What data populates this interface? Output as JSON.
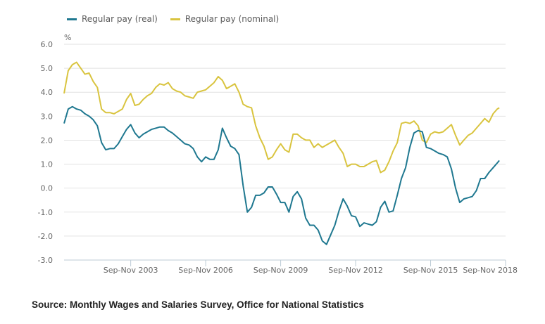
{
  "chart_data": {
    "type": "line",
    "title": "",
    "xlabel": "",
    "ylabel": "%",
    "ylim": [
      -3.0,
      6.0
    ],
    "yticks": [
      "6.0",
      "5.0",
      "4.0",
      "3.0",
      "2.0",
      "1.0",
      "0.0",
      "-1.0",
      "-2.0",
      "-3.0"
    ],
    "xlim": [
      "2001-03",
      "2018-11"
    ],
    "xtick_labels": [
      {
        "period": "2003-11",
        "label": "Sep-Nov 2003"
      },
      {
        "period": "2006-11",
        "label": "Sep-Nov 2006"
      },
      {
        "period": "2009-11",
        "label": "Sep-Nov 2009"
      },
      {
        "period": "2012-11",
        "label": "Sep-Nov 2012"
      },
      {
        "period": "2015-11",
        "label": "Sep-Nov 2015"
      },
      {
        "period": "2018-11",
        "label": "Sep-Nov 2018"
      }
    ],
    "grid": true,
    "legend_position": "top-left",
    "x": [
      "2001-03",
      "2001-05",
      "2001-07",
      "2001-09",
      "2001-11",
      "2002-01",
      "2002-03",
      "2002-05",
      "2002-07",
      "2002-09",
      "2002-11",
      "2003-01",
      "2003-03",
      "2003-05",
      "2003-07",
      "2003-09",
      "2003-11",
      "2004-01",
      "2004-03",
      "2004-05",
      "2004-07",
      "2004-09",
      "2004-11",
      "2005-01",
      "2005-03",
      "2005-05",
      "2005-07",
      "2005-09",
      "2005-11",
      "2006-01",
      "2006-03",
      "2006-05",
      "2006-07",
      "2006-09",
      "2006-11",
      "2007-01",
      "2007-03",
      "2007-05",
      "2007-07",
      "2007-09",
      "2007-11",
      "2008-01",
      "2008-03",
      "2008-05",
      "2008-07",
      "2008-09",
      "2008-11",
      "2009-01",
      "2009-03",
      "2009-05",
      "2009-07",
      "2009-09",
      "2009-11",
      "2010-01",
      "2010-03",
      "2010-05",
      "2010-07",
      "2010-09",
      "2010-11",
      "2011-01",
      "2011-03",
      "2011-05",
      "2011-07",
      "2011-09",
      "2011-11",
      "2012-01",
      "2012-03",
      "2012-05",
      "2012-07",
      "2012-09",
      "2012-11",
      "2013-01",
      "2013-03",
      "2013-05",
      "2013-07",
      "2013-09",
      "2013-11",
      "2014-01",
      "2014-03",
      "2014-05",
      "2014-07",
      "2014-09",
      "2014-11",
      "2015-01",
      "2015-03",
      "2015-05",
      "2015-07",
      "2015-09",
      "2015-11",
      "2016-01",
      "2016-03",
      "2016-05",
      "2016-07",
      "2016-09",
      "2016-11",
      "2017-01",
      "2017-03",
      "2017-05",
      "2017-07",
      "2017-09",
      "2017-11",
      "2018-01",
      "2018-03",
      "2018-05",
      "2018-07",
      "2018-08"
    ],
    "series": [
      {
        "name": "Regular pay (real)",
        "color": "#1f7890",
        "values": [
          2.7,
          3.3,
          3.4,
          3.3,
          3.25,
          3.1,
          3.0,
          2.85,
          2.6,
          1.9,
          1.6,
          1.65,
          1.65,
          1.85,
          2.15,
          2.45,
          2.65,
          2.3,
          2.1,
          2.25,
          2.35,
          2.45,
          2.5,
          2.55,
          2.55,
          2.4,
          2.3,
          2.15,
          2.0,
          1.85,
          1.8,
          1.65,
          1.3,
          1.1,
          1.3,
          1.2,
          1.2,
          1.6,
          2.5,
          2.1,
          1.75,
          1.65,
          1.4,
          0.1,
          -1.0,
          -0.8,
          -0.3,
          -0.3,
          -0.2,
          0.05,
          0.05,
          -0.25,
          -0.6,
          -0.6,
          -1.0,
          -0.35,
          -0.15,
          -0.45,
          -1.25,
          -1.55,
          -1.55,
          -1.75,
          -2.2,
          -2.35,
          -1.95,
          -1.55,
          -0.95,
          -0.45,
          -0.75,
          -1.15,
          -1.2,
          -1.6,
          -1.45,
          -1.5,
          -1.55,
          -1.4,
          -0.8,
          -0.55,
          -1.0,
          -0.95,
          -0.3,
          0.4,
          0.85,
          1.7,
          2.3,
          2.4,
          2.35,
          1.7,
          1.65,
          1.55,
          1.45,
          1.4,
          1.3,
          0.8,
          0.0,
          -0.6,
          -0.45,
          -0.4,
          -0.35,
          -0.1,
          0.4,
          0.4,
          0.65,
          0.85,
          1.05,
          1.15
        ]
      },
      {
        "name": "Regular pay (nominal)",
        "color": "#d9c43f",
        "values": [
          3.95,
          4.9,
          5.15,
          5.25,
          5.0,
          4.75,
          4.8,
          4.45,
          4.2,
          3.3,
          3.15,
          3.15,
          3.1,
          3.2,
          3.3,
          3.7,
          3.95,
          3.45,
          3.5,
          3.7,
          3.85,
          3.95,
          4.2,
          4.35,
          4.3,
          4.4,
          4.15,
          4.05,
          4.0,
          3.85,
          3.8,
          3.75,
          4.0,
          4.05,
          4.1,
          4.25,
          4.4,
          4.65,
          4.5,
          4.15,
          4.25,
          4.35,
          4.0,
          3.5,
          3.4,
          3.35,
          2.6,
          2.1,
          1.75,
          1.2,
          1.3,
          1.6,
          1.85,
          1.6,
          1.5,
          2.25,
          2.25,
          2.1,
          2.0,
          2.0,
          1.7,
          1.85,
          1.7,
          1.8,
          1.9,
          2.0,
          1.7,
          1.45,
          0.9,
          1.0,
          1.0,
          0.9,
          0.9,
          1.0,
          1.1,
          1.15,
          0.65,
          0.75,
          1.1,
          1.55,
          1.9,
          2.7,
          2.75,
          2.7,
          2.8,
          2.6,
          2.0,
          1.9,
          2.25,
          2.35,
          2.3,
          2.35,
          2.5,
          2.65,
          2.2,
          1.8,
          2.0,
          2.2,
          2.3,
          2.5,
          2.7,
          2.9,
          2.75,
          3.1,
          3.3,
          3.35
        ]
      }
    ]
  },
  "source": "Source: Monthly Wages and Salaries Survey, Office for National Statistics"
}
